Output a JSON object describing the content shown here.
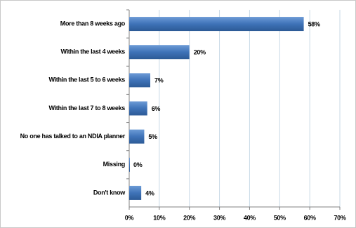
{
  "chart_data": {
    "type": "hbar",
    "categories": [
      "More than 8 weeks ago",
      "Within the last 4 weeks",
      "Within the last 5 to 6 weeks",
      "Within the last 7 to 8 weeks",
      "No one has talked to an NDIA planner",
      "Missing",
      "Don't know"
    ],
    "values": [
      58,
      20,
      7,
      6,
      5,
      0,
      4
    ],
    "value_labels": [
      "58%",
      "20%",
      "7%",
      "6%",
      "5%",
      "0%",
      "4%"
    ],
    "color": "#3f73b8",
    "xlim": [
      0,
      70
    ],
    "xticks": [
      {
        "value": 0,
        "label": "0%"
      },
      {
        "value": 10,
        "label": "10%"
      },
      {
        "value": 20,
        "label": "20%"
      },
      {
        "value": 30,
        "label": "30%"
      },
      {
        "value": 40,
        "label": "40%"
      },
      {
        "value": 50,
        "label": "50%"
      },
      {
        "value": 60,
        "label": "60%"
      },
      {
        "value": 70,
        "label": "70%"
      }
    ],
    "grid": true
  }
}
